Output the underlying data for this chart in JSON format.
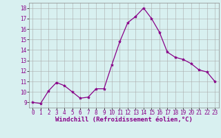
{
  "x": [
    0,
    1,
    2,
    3,
    4,
    5,
    6,
    7,
    8,
    9,
    10,
    11,
    12,
    13,
    14,
    15,
    16,
    17,
    18,
    19,
    20,
    21,
    22,
    23
  ],
  "y": [
    9.0,
    8.9,
    10.1,
    10.9,
    10.6,
    10.0,
    9.4,
    9.5,
    10.3,
    10.3,
    12.6,
    14.8,
    16.6,
    17.2,
    18.0,
    17.0,
    15.7,
    13.8,
    13.3,
    13.1,
    12.7,
    12.1,
    11.9,
    11.0
  ],
  "line_color": "#880088",
  "marker": "*",
  "marker_size": 3,
  "bg_color": "#d8f0f0",
  "grid_color": "#aaaaaa",
  "ylabel_ticks": [
    9,
    10,
    11,
    12,
    13,
    14,
    15,
    16,
    17,
    18
  ],
  "xlabel": "Windchill (Refroidissement éolien,°C)",
  "ylim": [
    8.5,
    18.5
  ],
  "xlim": [
    -0.5,
    23.5
  ],
  "axis_label_fontsize": 6.5,
  "tick_fontsize": 5.5
}
